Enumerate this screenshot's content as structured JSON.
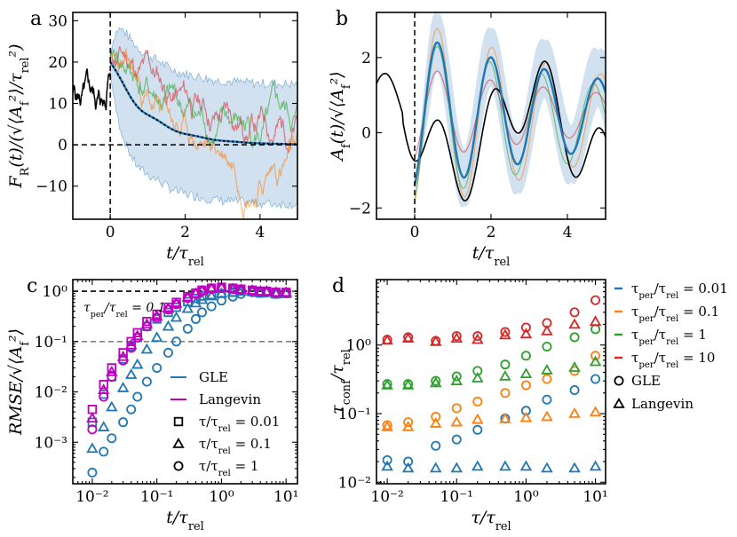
{
  "colors": {
    "blue": "#1f77b4",
    "orange": "#ff7f0e",
    "green": "#2ca02c",
    "red": "#d62728",
    "magenta": "#c000c0",
    "band": "#b3cde6",
    "gray": "#808080",
    "black": "#000000"
  },
  "chart_data": [
    {
      "panel": "a",
      "type": "line",
      "xlabel": "t/τ_rel",
      "ylabel": "F_R(t)/(√⟨A_f²⟩/τ_rel²)",
      "xlim": [
        -1,
        5
      ],
      "ylim": [
        -18,
        32
      ],
      "xticks": [
        0,
        2,
        4
      ],
      "yticks": [
        -10,
        0,
        10,
        20,
        30
      ],
      "xtick_labels": [
        "0",
        "2",
        "4"
      ],
      "ytick_labels": [
        "−10",
        "0",
        "10",
        "20",
        "30"
      ],
      "vline_x": 0,
      "hline_y": 0,
      "series": [
        {
          "name": "mean",
          "amplitude": 20,
          "decay": 1.0
        },
        {
          "name": "band",
          "half_width": 13
        },
        {
          "name": "sample-red"
        },
        {
          "name": "sample-orange"
        },
        {
          "name": "sample-green"
        }
      ]
    },
    {
      "panel": "b",
      "type": "line",
      "xlabel": "t/τ_rel",
      "ylabel": "A_f(t)/√⟨A_f²⟩",
      "xlim": [
        -1,
        5
      ],
      "ylim": [
        -2.3,
        3.2
      ],
      "xticks": [
        0,
        2,
        4
      ],
      "yticks": [
        -2,
        0,
        2
      ],
      "xtick_labels": [
        "0",
        "2",
        "4"
      ],
      "ytick_labels": [
        "−2",
        "0",
        "2"
      ],
      "vline_x": 0,
      "series": [
        {
          "name": "history-black"
        },
        {
          "name": "prediction-mean"
        },
        {
          "name": "band"
        },
        {
          "name": "sample-red"
        },
        {
          "name": "sample-orange"
        },
        {
          "name": "sample-green"
        }
      ]
    },
    {
      "panel": "c",
      "type": "scatter",
      "xscale": "log",
      "yscale": "log",
      "xlabel": "t/τ_rel",
      "ylabel": "RMSE/√⟨A_f²⟩",
      "xlim": [
        0.005,
        15
      ],
      "ylim": [
        0.00015,
        1.7
      ],
      "xticks": [
        0.01,
        0.1,
        1,
        10
      ],
      "yticks": [
        0.001,
        0.01,
        0.1,
        1
      ],
      "xtick_labels": [
        "10⁻²",
        "10⁻¹",
        "10⁰",
        "10¹"
      ],
      "ytick_labels": [
        "10⁻³",
        "10⁻²",
        "10⁻¹",
        "10⁰"
      ],
      "hline_black": 1,
      "hline_gray": 0.1,
      "annotation": "τ_per/τ_rel = 0.1",
      "x": [
        0.01,
        0.015,
        0.02,
        0.03,
        0.04,
        0.05,
        0.07,
        0.1,
        0.15,
        0.2,
        0.3,
        0.4,
        0.5,
        0.7,
        1,
        1.5,
        2,
        3,
        4,
        5,
        7,
        10
      ],
      "series": [
        {
          "name": "GLE τ/τ_rel=0.01",
          "marker": "square",
          "color": "blue",
          "values": [
            0.0025,
            0.009,
            0.02,
            0.045,
            0.08,
            0.12,
            0.2,
            0.28,
            0.38,
            0.48,
            0.62,
            0.72,
            0.8,
            0.85,
            0.9,
            0.95,
            1.0,
            0.98,
            0.92,
            0.95,
            0.88,
            0.9
          ]
        },
        {
          "name": "GLE τ/τ_rel=0.1",
          "marker": "triangle",
          "color": "blue",
          "values": [
            0.00075,
            0.002,
            0.005,
            0.012,
            0.022,
            0.035,
            0.07,
            0.12,
            0.2,
            0.3,
            0.45,
            0.58,
            0.68,
            0.8,
            0.9,
            0.95,
            1.0,
            0.98,
            0.93,
            0.95,
            0.88,
            0.9
          ]
        },
        {
          "name": "GLE τ/τ_rel=1",
          "marker": "circle",
          "color": "blue",
          "values": [
            0.00025,
            0.00065,
            0.0012,
            0.0025,
            0.0045,
            0.008,
            0.016,
            0.03,
            0.06,
            0.1,
            0.18,
            0.28,
            0.38,
            0.5,
            0.65,
            0.78,
            0.88,
            0.95,
            0.92,
            0.94,
            0.88,
            0.9
          ]
        },
        {
          "name": "Langevin τ/τ_rel=0.01",
          "marker": "square",
          "color": "magenta",
          "values": [
            0.0045,
            0.014,
            0.03,
            0.06,
            0.1,
            0.15,
            0.25,
            0.35,
            0.48,
            0.6,
            0.78,
            0.92,
            1.05,
            1.15,
            1.2,
            1.15,
            1.1,
            1.05,
            1.0,
            1.0,
            0.95,
            0.95
          ]
        },
        {
          "name": "Langevin τ/τ_rel=0.1",
          "marker": "triangle",
          "color": "magenta",
          "values": [
            0.003,
            0.011,
            0.025,
            0.05,
            0.085,
            0.13,
            0.22,
            0.32,
            0.45,
            0.57,
            0.75,
            0.9,
            1.02,
            1.12,
            1.18,
            1.12,
            1.08,
            1.04,
            1.0,
            1.0,
            0.95,
            0.95
          ]
        },
        {
          "name": "Langevin τ/τ_rel=1",
          "marker": "circle",
          "color": "magenta",
          "values": [
            0.0018,
            0.008,
            0.02,
            0.042,
            0.075,
            0.12,
            0.2,
            0.3,
            0.43,
            0.55,
            0.73,
            0.88,
            1.0,
            1.1,
            1.15,
            1.1,
            1.06,
            1.02,
            0.98,
            0.98,
            0.94,
            0.94
          ]
        }
      ],
      "legend": {
        "position": "lower-right",
        "entries": [
          {
            "kind": "line",
            "color": "blue",
            "label": "GLE"
          },
          {
            "kind": "line",
            "color": "magenta",
            "label": "Langevin"
          },
          {
            "kind": "marker",
            "marker": "square",
            "label": "τ/τ_rel = 0.01"
          },
          {
            "kind": "marker",
            "marker": "triangle",
            "label": "τ/τ_rel = 0.1"
          },
          {
            "kind": "marker",
            "marker": "circle",
            "label": "τ/τ_rel = 1"
          }
        ]
      }
    },
    {
      "panel": "d",
      "type": "scatter",
      "xscale": "log",
      "yscale": "log",
      "xlabel": "τ/τ_rel",
      "ylabel": "τ_conf/τ_rel",
      "xlim": [
        0.007,
        14
      ],
      "ylim": [
        0.0095,
        9
      ],
      "xticks": [
        0.01,
        0.1,
        1,
        10
      ],
      "yticks": [
        0.01,
        0.1,
        1
      ],
      "xtick_labels": [
        "10⁻²",
        "10⁻¹",
        "10⁰",
        "10¹"
      ],
      "ytick_labels": [
        "10⁻²",
        "10⁻¹",
        "10⁰"
      ],
      "x": [
        0.01,
        0.02,
        0.05,
        0.1,
        0.2,
        0.5,
        1,
        2,
        5,
        10
      ],
      "series": [
        {
          "name": "GLE τ_per=0.01",
          "marker": "circle",
          "color": "blue",
          "values": [
            0.021,
            0.02,
            0.034,
            0.042,
            0.058,
            0.085,
            0.11,
            0.16,
            0.22,
            0.32
          ]
        },
        {
          "name": "Langevin τ_per=0.01",
          "marker": "triangle",
          "color": "blue",
          "values": [
            0.017,
            0.016,
            0.016,
            0.016,
            0.017,
            0.017,
            0.017,
            0.016,
            0.016,
            0.017
          ]
        },
        {
          "name": "GLE τ_per=0.1",
          "marker": "circle",
          "color": "orange",
          "values": [
            0.068,
            0.075,
            0.09,
            0.12,
            0.15,
            0.2,
            0.26,
            0.32,
            0.42,
            0.7
          ]
        },
        {
          "name": "Langevin τ_per=0.1",
          "marker": "triangle",
          "color": "orange",
          "values": [
            0.064,
            0.064,
            0.072,
            0.075,
            0.082,
            0.084,
            0.087,
            0.09,
            0.1,
            0.105
          ]
        },
        {
          "name": "GLE τ_per=1",
          "marker": "circle",
          "color": "green",
          "values": [
            0.27,
            0.27,
            0.3,
            0.35,
            0.42,
            0.52,
            0.7,
            0.95,
            1.3,
            1.7
          ]
        },
        {
          "name": "Langevin τ_per=1",
          "marker": "triangle",
          "color": "green",
          "values": [
            0.26,
            0.26,
            0.28,
            0.3,
            0.33,
            0.35,
            0.38,
            0.43,
            0.47,
            0.57
          ]
        },
        {
          "name": "GLE τ_per=10",
          "marker": "circle",
          "color": "red",
          "values": [
            1.2,
            1.3,
            1.15,
            1.35,
            1.35,
            1.55,
            1.8,
            2.1,
            3.0,
            4.5
          ]
        },
        {
          "name": "Langevin τ_per=10",
          "marker": "triangle",
          "color": "red",
          "values": [
            1.17,
            1.25,
            1.12,
            1.25,
            1.2,
            1.4,
            1.45,
            1.6,
            2.0,
            2.2
          ]
        }
      ],
      "legend": {
        "position": "right-outside",
        "entries": [
          {
            "kind": "line",
            "color": "blue",
            "label": "τ_per/τ_rel = 0.01"
          },
          {
            "kind": "line",
            "color": "orange",
            "label": "τ_per/τ_rel = 0.1"
          },
          {
            "kind": "line",
            "color": "green",
            "label": "τ_per/τ_rel = 1"
          },
          {
            "kind": "line",
            "color": "red",
            "label": "τ_per/τ_rel = 10"
          },
          {
            "kind": "marker",
            "marker": "circle",
            "label": "GLE"
          },
          {
            "kind": "marker",
            "marker": "triangle",
            "label": "Langevin"
          }
        ]
      }
    }
  ]
}
